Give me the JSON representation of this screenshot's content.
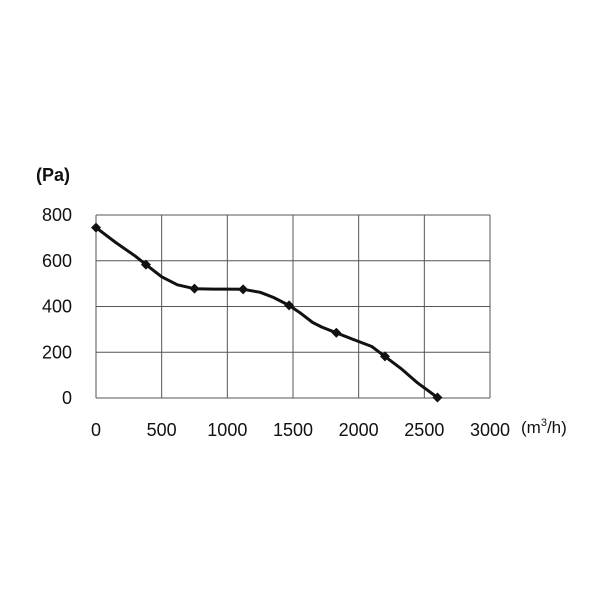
{
  "chart_data": {
    "type": "line",
    "title": "",
    "ylabel": "(Pa)",
    "xlabel_unit": {
      "base": "(m",
      "sup": "3",
      "tail": "/h)"
    },
    "xlim": [
      0,
      3000
    ],
    "ylim": [
      0,
      800
    ],
    "xticks": [
      "0",
      "500",
      "1000",
      "1500",
      "2000",
      "2500",
      "3000"
    ],
    "yticks": [
      "0",
      "200",
      "400",
      "600",
      "800"
    ],
    "grid": true,
    "series": [
      {
        "color": "#111111",
        "curve": [
          [
            0,
            745
          ],
          [
            150,
            680
          ],
          [
            300,
            620
          ],
          [
            380,
            583
          ],
          [
            500,
            530
          ],
          [
            620,
            495
          ],
          [
            750,
            478
          ],
          [
            900,
            476
          ],
          [
            1000,
            476
          ],
          [
            1120,
            475
          ],
          [
            1250,
            462
          ],
          [
            1350,
            440
          ],
          [
            1470,
            405
          ],
          [
            1560,
            370
          ],
          [
            1650,
            330
          ],
          [
            1720,
            310
          ],
          [
            1830,
            285
          ],
          [
            1950,
            258
          ],
          [
            2100,
            225
          ],
          [
            2200,
            182
          ],
          [
            2320,
            130
          ],
          [
            2450,
            65
          ],
          [
            2600,
            2
          ]
        ],
        "markers": [
          [
            0,
            745
          ],
          [
            380,
            583
          ],
          [
            750,
            478
          ],
          [
            1120,
            475
          ],
          [
            1470,
            405
          ],
          [
            1830,
            285
          ],
          [
            2200,
            182
          ],
          [
            2600,
            2
          ]
        ]
      }
    ]
  }
}
